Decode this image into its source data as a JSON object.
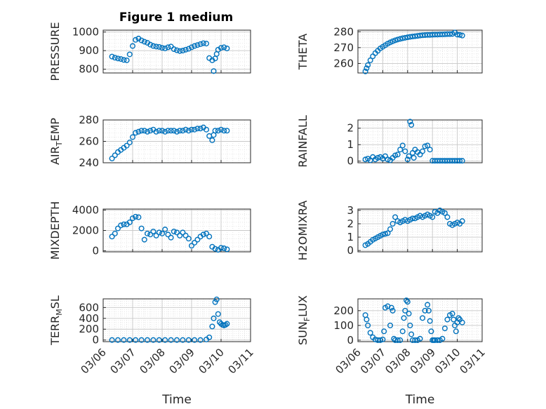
{
  "figure_title": "Figure 1 medium",
  "chart_data": [
    {
      "type": "scatter",
      "id": "pressure",
      "ylabel": "PRESSURE",
      "title": "Figure 1 medium",
      "ylim": [
        780,
        1010
      ],
      "yticks": [
        800,
        900,
        1000
      ],
      "xlim": [
        0,
        5
      ],
      "x": [
        0.3,
        0.4,
        0.5,
        0.6,
        0.7,
        0.8,
        0.9,
        1.0,
        1.1,
        1.2,
        1.3,
        1.4,
        1.5,
        1.6,
        1.7,
        1.8,
        1.9,
        2.0,
        2.1,
        2.2,
        2.3,
        2.4,
        2.5,
        2.6,
        2.7,
        2.8,
        2.9,
        3.0,
        3.1,
        3.2,
        3.3,
        3.4,
        3.5,
        3.6,
        3.7,
        3.75,
        3.8,
        3.85,
        3.9,
        4.0,
        4.1,
        4.2
      ],
      "y": [
        868,
        862,
        858,
        855,
        850,
        848,
        880,
        925,
        958,
        965,
        955,
        948,
        942,
        932,
        925,
        922,
        920,
        915,
        912,
        918,
        922,
        908,
        902,
        898,
        900,
        905,
        910,
        918,
        925,
        930,
        935,
        940,
        938,
        860,
        848,
        790,
        858,
        882,
        905,
        915,
        918,
        912
      ]
    },
    {
      "type": "scatter",
      "id": "theta",
      "ylabel": "THETA",
      "ylim": [
        254,
        281
      ],
      "yticks": [
        260,
        270,
        280
      ],
      "xlim": [
        0,
        5
      ],
      "x": [
        0.3,
        0.35,
        0.4,
        0.5,
        0.6,
        0.7,
        0.8,
        0.9,
        1.0,
        1.1,
        1.2,
        1.3,
        1.4,
        1.5,
        1.6,
        1.7,
        1.8,
        1.9,
        2.0,
        2.1,
        2.2,
        2.3,
        2.4,
        2.5,
        2.6,
        2.7,
        2.8,
        2.9,
        3.0,
        3.1,
        3.2,
        3.3,
        3.4,
        3.5,
        3.6,
        3.7,
        3.8,
        3.9,
        4.0,
        4.1,
        4.2
      ],
      "y": [
        255,
        257,
        259,
        262,
        264.5,
        266.5,
        268,
        269.5,
        270.5,
        271.5,
        272.5,
        273.3,
        274,
        274.6,
        275.1,
        275.5,
        275.9,
        276.2,
        276.5,
        276.8,
        277,
        277.2,
        277.4,
        277.6,
        277.8,
        277.9,
        278,
        278,
        278.1,
        278.2,
        278.2,
        278.3,
        278.3,
        278.4,
        278.5,
        278.5,
        278.6,
        279.5,
        278.2,
        278,
        277.6
      ]
    },
    {
      "type": "scatter",
      "id": "air_temp",
      "ylabel": "AIR",
      "ylabel_sub": "T",
      "ylabel_tail": "EMP",
      "ylim": [
        240,
        280
      ],
      "yticks": [
        240,
        260,
        280
      ],
      "xlim": [
        0,
        5
      ],
      "x": [
        0.3,
        0.4,
        0.5,
        0.6,
        0.7,
        0.8,
        0.9,
        1.0,
        1.1,
        1.2,
        1.3,
        1.4,
        1.5,
        1.6,
        1.7,
        1.8,
        1.9,
        2.0,
        2.1,
        2.2,
        2.3,
        2.4,
        2.5,
        2.6,
        2.7,
        2.8,
        2.9,
        3.0,
        3.1,
        3.2,
        3.3,
        3.4,
        3.5,
        3.6,
        3.7,
        3.75,
        3.8,
        3.9,
        4.0,
        4.1,
        4.2
      ],
      "y": [
        244,
        247,
        250,
        252,
        254,
        256,
        259,
        264,
        268,
        269,
        270,
        270,
        269,
        270,
        271,
        269,
        270,
        270,
        269,
        270,
        270,
        270,
        269,
        270,
        270,
        271,
        270,
        271,
        271,
        272,
        272,
        273,
        271,
        265,
        261,
        266,
        270,
        270,
        271,
        270,
        270
      ]
    },
    {
      "type": "scatter",
      "id": "rainfall",
      "ylabel": "RAINFALL",
      "ylim": [
        -0.1,
        2.5
      ],
      "yticks": [
        0,
        1,
        2
      ],
      "xlim": [
        0,
        5
      ],
      "x": [
        0.3,
        0.4,
        0.5,
        0.6,
        0.7,
        0.8,
        0.9,
        1.0,
        1.1,
        1.2,
        1.3,
        1.4,
        1.5,
        1.6,
        1.7,
        1.8,
        1.9,
        2.0,
        2.05,
        2.1,
        2.15,
        2.2,
        2.25,
        2.3,
        2.4,
        2.5,
        2.6,
        2.7,
        2.8,
        2.9,
        3.0,
        3.1,
        3.2,
        3.3,
        3.4,
        3.5,
        3.6,
        3.7,
        3.8,
        3.9,
        4.0,
        4.1,
        4.2
      ],
      "y": [
        0.1,
        0.15,
        0.05,
        0.25,
        0.1,
        0.2,
        0.25,
        0.15,
        0.3,
        0.1,
        0.05,
        0.2,
        0.35,
        0.4,
        0.7,
        0.95,
        0.6,
        0.1,
        0.3,
        2.4,
        2.2,
        0.5,
        0.2,
        0.7,
        0.55,
        0.4,
        0.6,
        0.9,
        0.95,
        0.7,
        0.02,
        0.02,
        0.02,
        0.02,
        0.02,
        0.02,
        0.02,
        0.02,
        0.02,
        0.02,
        0.02,
        0.02,
        0.02
      ]
    },
    {
      "type": "scatter",
      "id": "mixdepth",
      "ylabel": "MIXDEPTH",
      "ylim": [
        -100,
        4100
      ],
      "yticks": [
        0,
        2000,
        4000
      ],
      "xlim": [
        0,
        5
      ],
      "x": [
        0.3,
        0.4,
        0.5,
        0.6,
        0.7,
        0.8,
        0.9,
        1.0,
        1.1,
        1.2,
        1.3,
        1.4,
        1.5,
        1.6,
        1.7,
        1.8,
        1.9,
        2.0,
        2.1,
        2.2,
        2.3,
        2.4,
        2.5,
        2.6,
        2.7,
        2.8,
        2.9,
        3.0,
        3.1,
        3.2,
        3.3,
        3.4,
        3.5,
        3.6,
        3.7,
        3.8,
        3.9,
        4.0,
        4.1,
        4.2
      ],
      "y": [
        1400,
        1700,
        2200,
        2500,
        2600,
        2600,
        2800,
        3200,
        3350,
        3300,
        2200,
        1100,
        1700,
        1600,
        1900,
        1500,
        1800,
        1700,
        2100,
        1600,
        1300,
        1900,
        1800,
        1500,
        1800,
        1500,
        1200,
        500,
        800,
        1100,
        1400,
        1600,
        1700,
        1400,
        400,
        200,
        100,
        300,
        250,
        150
      ]
    },
    {
      "type": "scatter",
      "id": "h2omixra",
      "ylabel": "H2OMIXRA",
      "ylim": [
        -0.1,
        3.1
      ],
      "yticks": [
        0,
        1,
        2,
        3
      ],
      "xlim": [
        0,
        5
      ],
      "x": [
        0.3,
        0.4,
        0.5,
        0.6,
        0.7,
        0.8,
        0.9,
        1.0,
        1.1,
        1.2,
        1.3,
        1.4,
        1.5,
        1.6,
        1.7,
        1.8,
        1.9,
        2.0,
        2.1,
        2.2,
        2.3,
        2.4,
        2.5,
        2.6,
        2.7,
        2.8,
        2.9,
        3.0,
        3.1,
        3.2,
        3.3,
        3.4,
        3.5,
        3.6,
        3.7,
        3.8,
        3.9,
        4.0,
        4.1,
        4.2
      ],
      "y": [
        0.4,
        0.5,
        0.65,
        0.8,
        0.9,
        1.0,
        1.1,
        1.2,
        1.25,
        1.3,
        1.6,
        2.0,
        2.5,
        2.2,
        2.1,
        2.2,
        2.3,
        2.2,
        2.3,
        2.4,
        2.4,
        2.5,
        2.6,
        2.5,
        2.6,
        2.7,
        2.6,
        2.5,
        2.9,
        2.8,
        3.0,
        2.9,
        2.8,
        2.5,
        2.0,
        1.9,
        2.0,
        2.1,
        2.0,
        2.2
      ]
    },
    {
      "type": "scatter",
      "id": "terr_msl",
      "ylabel": "TERR",
      "ylabel_sub": "M",
      "ylabel_tail": "SL",
      "ylim": [
        -30,
        760
      ],
      "yticks": [
        0,
        200,
        400,
        600
      ],
      "xlim": [
        0,
        5
      ],
      "xticklabels": [
        "03/06",
        "03/07",
        "03/08",
        "03/09",
        "03/10",
        "03/11"
      ],
      "xlabel": "Time",
      "x": [
        0.3,
        0.5,
        0.7,
        0.9,
        1.1,
        1.3,
        1.5,
        1.7,
        1.9,
        2.1,
        2.3,
        2.5,
        2.7,
        2.9,
        3.1,
        3.3,
        3.5,
        3.6,
        3.7,
        3.75,
        3.8,
        3.85,
        3.9,
        3.95,
        4.0,
        4.05,
        4.1,
        4.15,
        4.2
      ],
      "y": [
        0,
        0,
        0,
        0,
        0,
        0,
        0,
        0,
        0,
        0,
        0,
        0,
        0,
        0,
        0,
        0,
        10,
        50,
        250,
        400,
        700,
        750,
        480,
        330,
        300,
        280,
        270,
        280,
        300
      ]
    },
    {
      "type": "scatter",
      "id": "sun_flux",
      "ylabel": "SUN",
      "ylabel_sub": "F",
      "ylabel_tail": "LUX",
      "ylim": [
        -10,
        280
      ],
      "yticks": [
        0,
        100,
        200
      ],
      "xlim": [
        0,
        5
      ],
      "xticklabels": [
        "03/06",
        "03/07",
        "03/08",
        "03/09",
        "03/10",
        "03/11"
      ],
      "xlabel": "Time",
      "x": [
        0.3,
        0.35,
        0.4,
        0.5,
        0.6,
        0.7,
        0.8,
        0.9,
        1.0,
        1.05,
        1.1,
        1.2,
        1.3,
        1.35,
        1.4,
        1.45,
        1.5,
        1.6,
        1.7,
        1.8,
        1.85,
        1.9,
        1.95,
        2.0,
        2.05,
        2.1,
        2.15,
        2.2,
        2.3,
        2.4,
        2.5,
        2.6,
        2.7,
        2.8,
        2.85,
        2.9,
        2.95,
        3.0,
        3.05,
        3.1,
        3.2,
        3.3,
        3.4,
        3.5,
        3.6,
        3.7,
        3.8,
        3.85,
        3.9,
        3.95,
        4.0,
        4.05,
        4.1,
        4.2
      ],
      "y": [
        170,
        140,
        100,
        50,
        20,
        5,
        0,
        0,
        5,
        60,
        220,
        230,
        100,
        220,
        200,
        10,
        0,
        0,
        0,
        60,
        150,
        200,
        270,
        260,
        180,
        100,
        40,
        0,
        0,
        0,
        10,
        150,
        200,
        240,
        200,
        130,
        60,
        0,
        0,
        0,
        0,
        0,
        10,
        80,
        140,
        170,
        180,
        140,
        100,
        60,
        120,
        150,
        140,
        120
      ]
    }
  ]
}
